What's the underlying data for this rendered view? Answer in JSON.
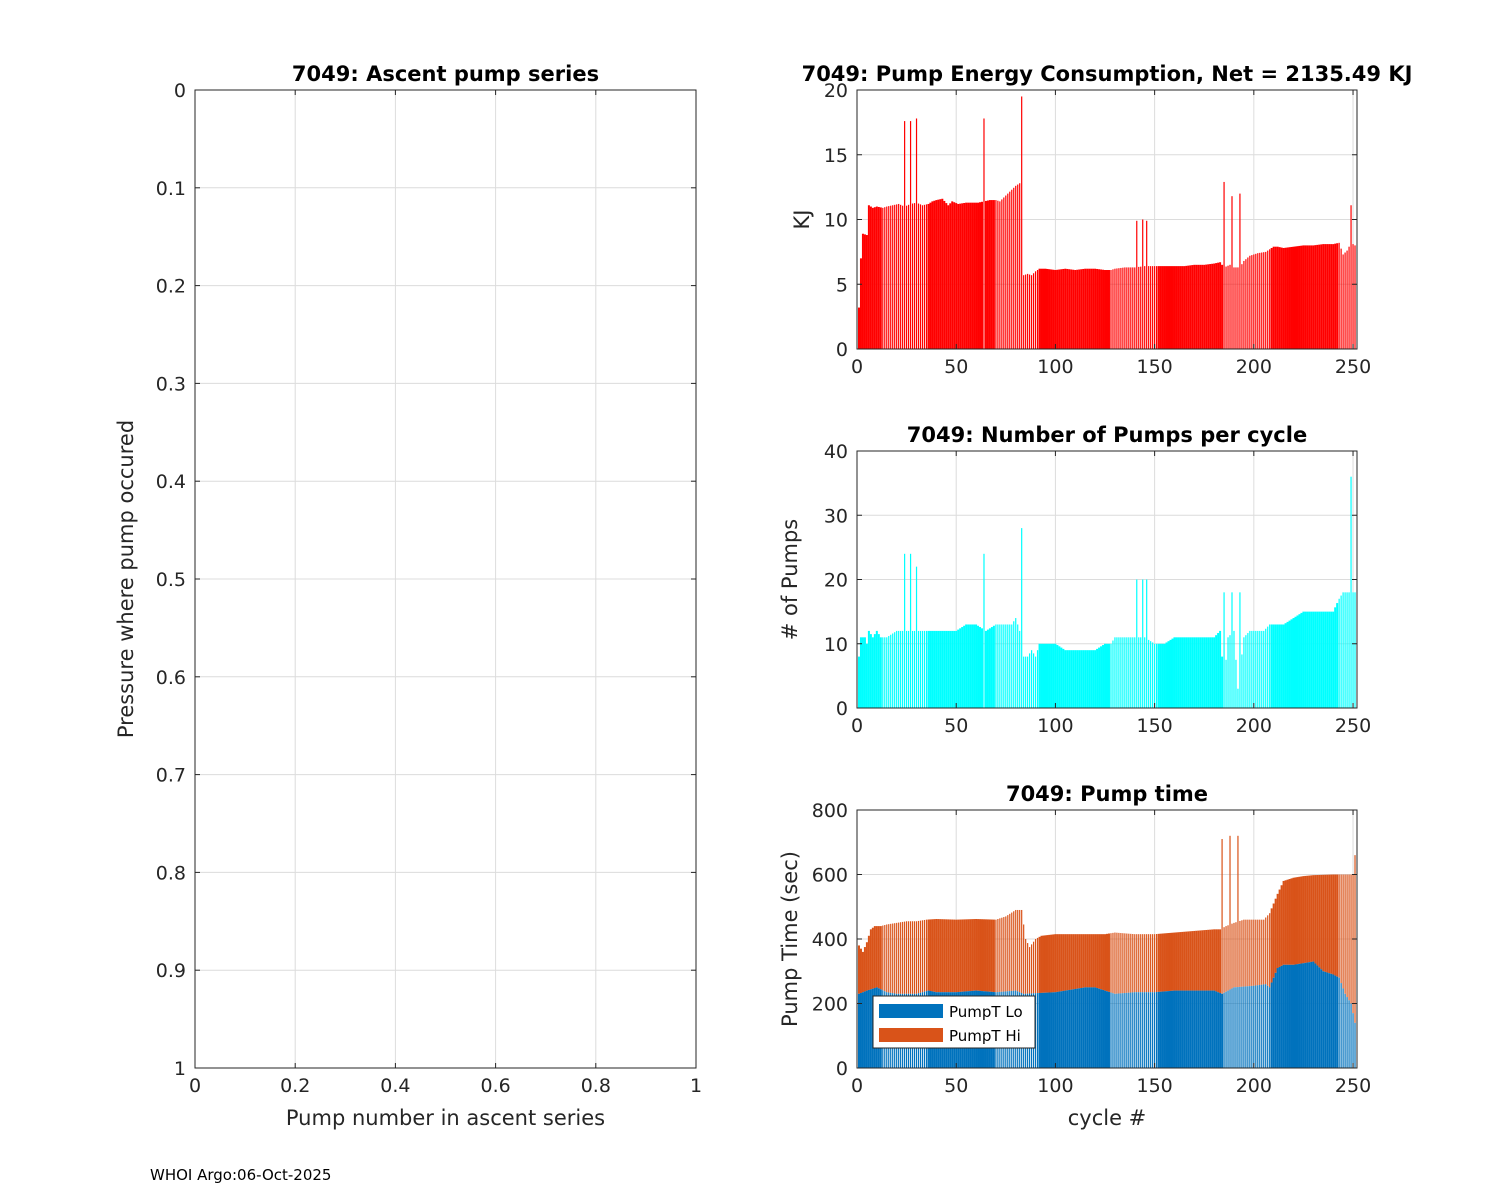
{
  "footer": "WHOI Argo:06-Oct-2025",
  "colors": {
    "energy": "#ff0000",
    "pumps": "#00ffff",
    "lo": "#0072bd",
    "hi": "#d95319",
    "grid": "#dcdcdc",
    "axis": "#262626"
  },
  "chart_data": [
    {
      "id": "ascent",
      "type": "line",
      "title": "7049: Ascent pump series",
      "xlabel": "Pump number in ascent series",
      "ylabel": "Pressure where pump occured",
      "xlim": [
        0,
        1
      ],
      "ylim": [
        0,
        1
      ],
      "y_reversed": true,
      "x_ticks": [
        "0",
        "0.2",
        "0.4",
        "0.6",
        "0.8",
        "1"
      ],
      "y_ticks": [
        "0",
        "0.1",
        "0.2",
        "0.3",
        "0.4",
        "0.5",
        "0.6",
        "0.7",
        "0.8",
        "0.9",
        "1"
      ],
      "series": []
    },
    {
      "id": "energy",
      "type": "bar",
      "title": "7049: Pump Energy Consumption,  Net = 2135.49 KJ",
      "xlabel": "",
      "ylabel": "KJ",
      "xlim": [
        0,
        252
      ],
      "ylim": [
        0,
        20
      ],
      "x_ticks": [
        "0",
        "50",
        "100",
        "150",
        "200",
        "250"
      ],
      "y_ticks": [
        "0",
        "5",
        "10",
        "15",
        "20"
      ],
      "keypoints": [
        [
          1,
          3.2
        ],
        [
          2,
          7
        ],
        [
          3,
          8.9
        ],
        [
          5,
          8.8
        ],
        [
          6,
          11.1
        ],
        [
          8,
          10.9
        ],
        [
          10,
          11
        ],
        [
          13,
          10.9
        ],
        [
          15,
          11
        ],
        [
          18,
          11.1
        ],
        [
          21,
          11.2
        ],
        [
          24,
          11
        ],
        [
          27,
          11.2
        ],
        [
          30,
          11.3
        ],
        [
          33,
          11.1
        ],
        [
          36,
          11.2
        ],
        [
          38,
          11.4
        ],
        [
          40,
          11.5
        ],
        [
          43,
          11.6
        ],
        [
          46,
          11.1
        ],
        [
          48,
          11.4
        ],
        [
          51,
          11.2
        ],
        [
          55,
          11.3
        ],
        [
          58,
          11.3
        ],
        [
          61,
          11.3
        ],
        [
          64,
          11.4
        ],
        [
          67,
          11.5
        ],
        [
          70,
          11.5
        ],
        [
          72,
          11.4
        ],
        [
          74,
          11.7
        ],
        [
          76,
          12
        ],
        [
          78,
          12.3
        ],
        [
          80,
          12.6
        ],
        [
          82,
          12.8
        ],
        [
          84,
          5.7
        ],
        [
          86,
          5.8
        ],
        [
          88,
          5.7
        ],
        [
          90,
          6
        ],
        [
          92,
          6.2
        ],
        [
          95,
          6.2
        ],
        [
          100,
          6.1
        ],
        [
          105,
          6.2
        ],
        [
          110,
          6.1
        ],
        [
          115,
          6.2
        ],
        [
          120,
          6.2
        ],
        [
          125,
          6.1
        ],
        [
          128,
          6.1
        ],
        [
          130,
          6.2
        ],
        [
          135,
          6.3
        ],
        [
          140,
          6.3
        ],
        [
          145,
          6.4
        ],
        [
          150,
          6.4
        ],
        [
          155,
          6.4
        ],
        [
          160,
          6.4
        ],
        [
          165,
          6.4
        ],
        [
          170,
          6.5
        ],
        [
          175,
          6.5
        ],
        [
          180,
          6.6
        ],
        [
          183,
          6.7
        ],
        [
          185,
          6.3
        ],
        [
          188,
          6.5
        ],
        [
          190,
          6.3
        ],
        [
          193,
          6.3
        ],
        [
          195,
          6.8
        ],
        [
          198,
          7.2
        ],
        [
          202,
          7.4
        ],
        [
          206,
          7.5
        ],
        [
          208,
          7.7
        ],
        [
          210,
          7.9
        ],
        [
          212,
          7.9
        ],
        [
          215,
          7.8
        ],
        [
          220,
          7.9
        ],
        [
          225,
          8
        ],
        [
          230,
          8
        ],
        [
          235,
          8.1
        ],
        [
          240,
          8.1
        ],
        [
          243,
          8.2
        ],
        [
          245,
          7.3
        ],
        [
          247,
          7.6
        ],
        [
          249,
          8.2
        ],
        [
          251,
          8
        ]
      ],
      "spikes": [
        [
          24,
          17.6
        ],
        [
          27,
          17.6
        ],
        [
          30,
          17.8
        ],
        [
          64,
          17.8
        ],
        [
          83,
          19.5
        ],
        [
          141,
          9.9
        ],
        [
          144,
          10
        ],
        [
          146,
          9.9
        ],
        [
          185,
          12.9
        ],
        [
          189,
          11.8
        ],
        [
          193,
          12
        ],
        [
          249,
          11.1
        ]
      ],
      "sparse_ranges": [
        [
          13,
          35
        ],
        [
          70,
          91
        ],
        [
          128,
          151
        ],
        [
          185,
          208
        ],
        [
          243,
          252
        ]
      ]
    },
    {
      "id": "pumps",
      "type": "bar",
      "title": "7049: Number of Pumps per cycle",
      "xlabel": "",
      "ylabel": "# of Pumps",
      "xlim": [
        0,
        252
      ],
      "ylim": [
        0,
        40
      ],
      "x_ticks": [
        "0",
        "50",
        "100",
        "150",
        "200",
        "250"
      ],
      "y_ticks": [
        "0",
        "10",
        "20",
        "30",
        "40"
      ],
      "keypoints": [
        [
          1,
          8
        ],
        [
          2,
          11
        ],
        [
          4,
          11
        ],
        [
          5,
          10
        ],
        [
          6,
          12
        ],
        [
          8,
          11
        ],
        [
          10,
          12
        ],
        [
          12,
          11
        ],
        [
          15,
          11
        ],
        [
          20,
          12
        ],
        [
          25,
          12
        ],
        [
          30,
          12
        ],
        [
          35,
          12
        ],
        [
          40,
          12
        ],
        [
          45,
          12
        ],
        [
          50,
          12
        ],
        [
          55,
          13
        ],
        [
          60,
          13
        ],
        [
          65,
          12
        ],
        [
          70,
          13
        ],
        [
          75,
          13
        ],
        [
          78,
          13
        ],
        [
          80,
          14
        ],
        [
          82,
          12
        ],
        [
          84,
          8
        ],
        [
          86,
          8
        ],
        [
          88,
          9
        ],
        [
          90,
          8
        ],
        [
          92,
          10
        ],
        [
          95,
          10
        ],
        [
          100,
          10
        ],
        [
          105,
          9
        ],
        [
          110,
          9
        ],
        [
          115,
          9
        ],
        [
          120,
          9
        ],
        [
          125,
          10
        ],
        [
          128,
          10
        ],
        [
          130,
          11
        ],
        [
          135,
          11
        ],
        [
          140,
          11
        ],
        [
          145,
          11
        ],
        [
          150,
          10
        ],
        [
          155,
          10
        ],
        [
          160,
          11
        ],
        [
          165,
          11
        ],
        [
          170,
          11
        ],
        [
          175,
          11
        ],
        [
          180,
          11
        ],
        [
          183,
          12
        ],
        [
          185,
          4
        ],
        [
          187,
          11
        ],
        [
          190,
          12
        ],
        [
          192,
          3
        ],
        [
          195,
          11
        ],
        [
          198,
          12
        ],
        [
          200,
          12
        ],
        [
          205,
          12
        ],
        [
          208,
          13
        ],
        [
          210,
          13
        ],
        [
          215,
          13
        ],
        [
          220,
          14
        ],
        [
          225,
          15
        ],
        [
          230,
          15
        ],
        [
          235,
          15
        ],
        [
          240,
          15
        ],
        [
          243,
          17
        ],
        [
          245,
          18
        ],
        [
          248,
          18
        ],
        [
          250,
          18
        ],
        [
          251,
          18
        ]
      ],
      "spikes": [
        [
          24,
          24
        ],
        [
          27,
          24
        ],
        [
          30,
          22
        ],
        [
          64,
          24
        ],
        [
          83,
          28
        ],
        [
          141,
          20
        ],
        [
          144,
          20
        ],
        [
          146,
          20
        ],
        [
          185,
          18
        ],
        [
          189,
          18
        ],
        [
          193,
          18
        ],
        [
          249,
          36
        ]
      ],
      "sparse_ranges": [
        [
          13,
          35
        ],
        [
          70,
          91
        ],
        [
          128,
          151
        ],
        [
          185,
          208
        ],
        [
          243,
          252
        ]
      ]
    },
    {
      "id": "pumptime",
      "type": "bar",
      "title": "7049: Pump time",
      "xlabel": "cycle #",
      "ylabel": "Pump Time (sec)",
      "xlim": [
        0,
        252
      ],
      "ylim": [
        0,
        800
      ],
      "stacked": true,
      "legend": [
        "PumpT Lo",
        "PumpT Hi"
      ],
      "legend_position": "bottom-left",
      "x_ticks": [
        "0",
        "50",
        "100",
        "150",
        "200",
        "250"
      ],
      "y_ticks": [
        "0",
        "200",
        "400",
        "600",
        "800"
      ],
      "lo_keypoints": [
        [
          1,
          230
        ],
        [
          5,
          240
        ],
        [
          10,
          250
        ],
        [
          15,
          235
        ],
        [
          20,
          230
        ],
        [
          30,
          230
        ],
        [
          36,
          240
        ],
        [
          40,
          235
        ],
        [
          50,
          235
        ],
        [
          60,
          240
        ],
        [
          70,
          235
        ],
        [
          80,
          240
        ],
        [
          84,
          230
        ],
        [
          90,
          232
        ],
        [
          100,
          235
        ],
        [
          110,
          245
        ],
        [
          115,
          250
        ],
        [
          120,
          250
        ],
        [
          125,
          240
        ],
        [
          130,
          230
        ],
        [
          140,
          235
        ],
        [
          150,
          235
        ],
        [
          160,
          240
        ],
        [
          170,
          240
        ],
        [
          180,
          240
        ],
        [
          184,
          230
        ],
        [
          190,
          250
        ],
        [
          200,
          255
        ],
        [
          206,
          260
        ],
        [
          208,
          250
        ],
        [
          212,
          310
        ],
        [
          215,
          320
        ],
        [
          220,
          320
        ],
        [
          225,
          325
        ],
        [
          230,
          330
        ],
        [
          235,
          300
        ],
        [
          240,
          290
        ],
        [
          243,
          280
        ],
        [
          246,
          230
        ],
        [
          249,
          200
        ],
        [
          251,
          140
        ]
      ],
      "total_keypoints": [
        [
          1,
          380
        ],
        [
          3,
          360
        ],
        [
          5,
          390
        ],
        [
          7,
          430
        ],
        [
          9,
          440
        ],
        [
          12,
          440
        ],
        [
          15,
          445
        ],
        [
          20,
          450
        ],
        [
          25,
          455
        ],
        [
          30,
          455
        ],
        [
          35,
          460
        ],
        [
          40,
          462
        ],
        [
          50,
          460
        ],
        [
          60,
          462
        ],
        [
          70,
          460
        ],
        [
          75,
          470
        ],
        [
          80,
          490
        ],
        [
          83,
          490
        ],
        [
          85,
          400
        ],
        [
          87,
          375
        ],
        [
          90,
          400
        ],
        [
          93,
          410
        ],
        [
          100,
          415
        ],
        [
          110,
          415
        ],
        [
          120,
          415
        ],
        [
          125,
          415
        ],
        [
          130,
          420
        ],
        [
          140,
          415
        ],
        [
          150,
          415
        ],
        [
          160,
          420
        ],
        [
          170,
          425
        ],
        [
          180,
          430
        ],
        [
          183,
          430
        ],
        [
          186,
          440
        ],
        [
          190,
          450
        ],
        [
          195,
          460
        ],
        [
          200,
          460
        ],
        [
          205,
          460
        ],
        [
          208,
          480
        ],
        [
          212,
          540
        ],
        [
          215,
          580
        ],
        [
          220,
          590
        ],
        [
          225,
          595
        ],
        [
          230,
          598
        ],
        [
          240,
          600
        ],
        [
          245,
          600
        ],
        [
          250,
          600
        ],
        [
          251,
          660
        ]
      ],
      "spikes": [
        [
          184,
          710
        ],
        [
          188,
          720
        ],
        [
          192,
          720
        ]
      ],
      "sparse_ranges": [
        [
          13,
          35
        ],
        [
          70,
          91
        ],
        [
          128,
          151
        ],
        [
          185,
          208
        ],
        [
          243,
          252
        ]
      ]
    }
  ]
}
